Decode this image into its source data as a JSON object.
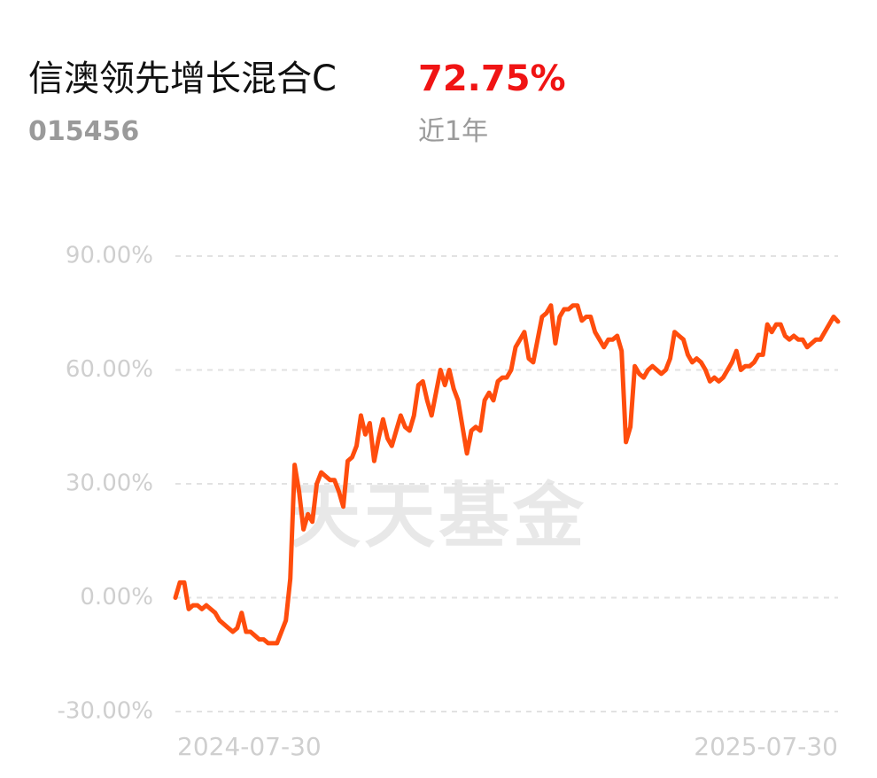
{
  "header": {
    "title": "信澳领先增长混合C",
    "code": "015456",
    "return_label": "72.75%",
    "period": "近1年"
  },
  "chart_data": {
    "type": "line",
    "watermark": "天天基金",
    "color": "#ff4d0d",
    "grid": true,
    "ylim": [
      -30,
      90
    ],
    "yticks": [
      {
        "value": -30,
        "label": "-30.00%"
      },
      {
        "value": 0,
        "label": "0.00%"
      },
      {
        "value": 30,
        "label": "30.00%"
      },
      {
        "value": 60,
        "label": "60.00%"
      },
      {
        "value": 90,
        "label": "90.00%"
      }
    ],
    "categories": [
      "2024-07-30",
      null,
      null,
      null,
      null,
      null,
      null,
      null,
      null,
      null,
      null,
      null,
      null,
      null,
      null,
      null,
      null,
      null,
      null,
      null,
      null,
      null,
      null,
      null,
      null,
      null,
      null,
      null,
      null,
      null,
      null,
      null,
      null,
      null,
      null,
      null,
      null,
      null,
      null,
      null,
      null,
      null,
      null,
      null,
      null,
      null,
      null,
      null,
      null,
      null,
      null,
      null,
      null,
      null,
      null,
      null,
      null,
      null,
      null,
      null,
      null,
      null,
      null,
      null,
      null,
      null,
      null,
      null,
      null,
      null,
      null,
      null,
      null,
      null,
      null,
      null,
      null,
      null,
      null,
      null,
      null,
      null,
      null,
      null,
      null,
      null,
      null,
      null,
      null,
      null,
      null,
      null,
      null,
      null,
      null,
      null,
      null,
      null,
      null,
      null,
      null,
      null,
      null,
      null,
      null,
      null,
      null,
      null,
      null,
      null,
      null,
      null,
      null,
      null,
      null,
      null,
      null,
      null,
      null,
      null,
      null,
      null,
      null,
      null,
      null,
      null,
      null,
      null,
      null,
      null,
      null,
      null,
      null,
      null,
      null,
      null,
      null,
      null,
      null,
      null,
      null,
      null,
      null,
      null,
      null,
      null,
      null,
      null,
      null,
      null,
      "2025-07-30"
    ],
    "values": [
      0,
      4,
      4,
      -3,
      -2,
      -2,
      -3,
      -2,
      -3,
      -4,
      -6,
      -7,
      -8,
      -9,
      -8,
      -4,
      -9,
      -9,
      -10,
      -11,
      -11,
      -12,
      -12,
      -12,
      -9,
      -6,
      5,
      35,
      28,
      18,
      22,
      20,
      30,
      33,
      32,
      31,
      31,
      28,
      24,
      36,
      37,
      40,
      48,
      43,
      46,
      36,
      42,
      47,
      42,
      40,
      44,
      48,
      45,
      44,
      48,
      56,
      57,
      52,
      48,
      54,
      60,
      56,
      60,
      55,
      52,
      45,
      38,
      44,
      45,
      44,
      52,
      54,
      52,
      57,
      58,
      58,
      60,
      66,
      68,
      70,
      63,
      62,
      68,
      74,
      75,
      77,
      67,
      74,
      76,
      76,
      77,
      77,
      73,
      74,
      74,
      70,
      68,
      66,
      68,
      68,
      69,
      65,
      41,
      45,
      61,
      59,
      58,
      60,
      61,
      60,
      59,
      60,
      63,
      70,
      69,
      68,
      64,
      62,
      63,
      62,
      60,
      57,
      58,
      57,
      58,
      60,
      62,
      65,
      60,
      61,
      61,
      62,
      64,
      64,
      72,
      70,
      72,
      72,
      69,
      68,
      69,
      68,
      68,
      66,
      67,
      68,
      68,
      70,
      72,
      74,
      72.75
    ]
  }
}
